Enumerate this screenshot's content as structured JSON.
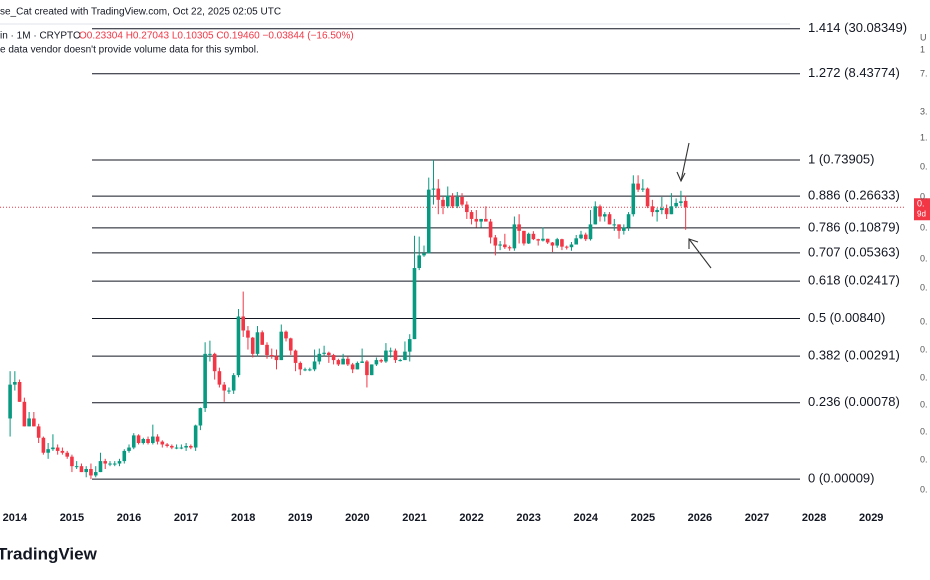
{
  "chart_data": {
    "type": "candlestick",
    "header": {
      "title": "se_Cat created with TradingView.com, Oct 22, 2025 02:05 UTC",
      "symbol": "in · 1M · CRYPTO",
      "ohlc_text": "O0.23304 H0.27043 L0.10305 C0.19460 −0.03844 (−16.50%)",
      "notice": "e data vendor doesn't provide volume data for this symbol."
    },
    "logo": "TradingView",
    "log_scale": true,
    "up_color": "#089981",
    "down_color": "#f23645",
    "xlim": [
      2013.74,
      2030.03
    ],
    "xticks": [
      2014,
      2015,
      2016,
      2017,
      2018,
      2019,
      2020,
      2021,
      2022,
      2023,
      2024,
      2025,
      2026,
      2027,
      2028,
      2029
    ],
    "ylim": [
      5e-05,
      67.8
    ],
    "fib_levels": [
      {
        "value": 30.08349,
        "label": "1.414 (30.08349)"
      },
      {
        "value": 8.43774,
        "label": "1.272 (8.43774)"
      },
      {
        "value": 0.73905,
        "label": "1 (0.73905)"
      },
      {
        "value": 0.26633,
        "label": "0.886 (0.26633)"
      },
      {
        "value": 0.10879,
        "label": "0.786 (0.10879)"
      },
      {
        "value": 0.05363,
        "label": "0.707 (0.05363)"
      },
      {
        "value": 0.02417,
        "label": "0.618 (0.02417)"
      },
      {
        "value": 0.0084,
        "label": "0.5 (0.00840)"
      },
      {
        "value": 0.00291,
        "label": "0.382 (0.00291)"
      },
      {
        "value": 0.00078,
        "label": "0.236 (0.00078)"
      },
      {
        "value": 9e-05,
        "label": "0 (0.00009)"
      }
    ],
    "price_tag": [
      "0.",
      "9d"
    ],
    "right_scale_fragments": [
      "U",
      "1",
      "7.",
      "3.",
      "1.",
      "0.",
      "0.",
      "0.",
      "0.",
      "0.",
      "0.",
      "0.",
      "0.",
      "0.",
      "0.",
      "0.",
      "0."
    ],
    "x": [
      2013.917,
      2014.0,
      2014.083,
      2014.167,
      2014.25,
      2014.333,
      2014.417,
      2014.5,
      2014.583,
      2014.667,
      2014.75,
      2014.833,
      2014.917,
      2015.0,
      2015.083,
      2015.167,
      2015.25,
      2015.333,
      2015.417,
      2015.5,
      2015.583,
      2015.667,
      2015.75,
      2015.833,
      2015.917,
      2016.0,
      2016.083,
      2016.167,
      2016.25,
      2016.333,
      2016.417,
      2016.5,
      2016.583,
      2016.667,
      2016.75,
      2016.833,
      2016.917,
      2017.0,
      2017.083,
      2017.167,
      2017.25,
      2017.333,
      2017.417,
      2017.5,
      2017.583,
      2017.667,
      2017.75,
      2017.833,
      2017.917,
      2018.0,
      2018.083,
      2018.167,
      2018.25,
      2018.333,
      2018.417,
      2018.5,
      2018.583,
      2018.667,
      2018.75,
      2018.833,
      2018.917,
      2019.0,
      2019.083,
      2019.167,
      2019.25,
      2019.333,
      2019.417,
      2019.5,
      2019.583,
      2019.667,
      2019.75,
      2019.833,
      2019.917,
      2020.0,
      2020.083,
      2020.167,
      2020.25,
      2020.333,
      2020.417,
      2020.5,
      2020.583,
      2020.667,
      2020.75,
      2020.833,
      2020.917,
      2021.0,
      2021.083,
      2021.167,
      2021.25,
      2021.333,
      2021.417,
      2021.5,
      2021.583,
      2021.667,
      2021.75,
      2021.833,
      2021.917,
      2022.0,
      2022.083,
      2022.167,
      2022.25,
      2022.333,
      2022.417,
      2022.5,
      2022.583,
      2022.667,
      2022.75,
      2022.833,
      2022.917,
      2023.0,
      2023.083,
      2023.167,
      2023.25,
      2023.333,
      2023.417,
      2023.5,
      2023.583,
      2023.667,
      2023.75,
      2023.833,
      2023.917,
      2024.0,
      2024.083,
      2024.167,
      2024.25,
      2024.333,
      2024.417,
      2024.5,
      2024.583,
      2024.667,
      2024.75,
      2024.833,
      2024.917,
      2025.0,
      2025.083,
      2025.167,
      2025.25,
      2025.333,
      2025.417,
      2025.5,
      2025.583,
      2025.667,
      2025.75
    ],
    "open": [
      0.0005,
      0.0013,
      0.0014,
      0.0008,
      0.0004,
      0.0005,
      0.0004,
      0.00029,
      0.00019,
      0.00021,
      0.00022,
      0.0002,
      0.00019,
      0.00017,
      0.00013,
      0.00013,
      0.00011,
      0.00012,
      0.0001,
      0.00011,
      0.00015,
      0.00014,
      0.00014,
      0.00014,
      0.00015,
      0.0002,
      0.00022,
      0.00031,
      0.00025,
      0.00028,
      0.00025,
      0.0003,
      0.00026,
      0.00024,
      0.00023,
      0.00022,
      0.00022,
      0.00022,
      0.00023,
      0.00022,
      0.00041,
      0.00067,
      0.0031,
      0.0031,
      0.0019,
      0.0013,
      0.0011,
      0.0011,
      0.0017,
      0.0089,
      0.006,
      0.0049,
      0.0031,
      0.0057,
      0.004,
      0.003,
      0.0029,
      0.0026,
      0.0058,
      0.0048,
      0.0034,
      0.0024,
      0.002,
      0.002,
      0.002,
      0.0025,
      0.0031,
      0.0032,
      0.003,
      0.0026,
      0.0023,
      0.0027,
      0.0023,
      0.002,
      0.0024,
      0.0025,
      0.0017,
      0.0023,
      0.0026,
      0.0025,
      0.0034,
      0.0034,
      0.0026,
      0.0026,
      0.0033,
      0.0047,
      0.035,
      0.05,
      0.053,
      0.32,
      0.33,
      0.24,
      0.2,
      0.27,
      0.2,
      0.26,
      0.21,
      0.17,
      0.14,
      0.13,
      0.14,
      0.13,
      0.083,
      0.066,
      0.068,
      0.063,
      0.061,
      0.12,
      0.1,
      0.07,
      0.092,
      0.079,
      0.076,
      0.08,
      0.072,
      0.066,
      0.079,
      0.064,
      0.063,
      0.068,
      0.081,
      0.09,
      0.079,
      0.12,
      0.2,
      0.15,
      0.16,
      0.12,
      0.12,
      0.1,
      0.11,
      0.16,
      0.38,
      0.32,
      0.33,
      0.2,
      0.17,
      0.18,
      0.19,
      0.16,
      0.2,
      0.22,
      0.23304
    ],
    "high": [
      0.0019,
      0.0019,
      0.0015,
      0.0009,
      0.0006,
      0.0006,
      0.00043,
      0.0003,
      0.00025,
      0.00032,
      0.00024,
      0.00022,
      0.0002,
      0.00018,
      0.00015,
      0.00014,
      0.00013,
      0.00014,
      0.00013,
      0.00019,
      0.00016,
      0.00015,
      0.00015,
      0.00016,
      0.00021,
      0.00024,
      0.00033,
      0.00032,
      0.00029,
      0.0003,
      0.00042,
      0.00032,
      0.00027,
      0.00025,
      0.00024,
      0.00024,
      0.00024,
      0.00025,
      0.00024,
      0.00042,
      0.00068,
      0.0043,
      0.0045,
      0.0032,
      0.0021,
      0.0014,
      0.0012,
      0.0018,
      0.011,
      0.018,
      0.0068,
      0.005,
      0.0068,
      0.006,
      0.0043,
      0.0036,
      0.0035,
      0.0071,
      0.006,
      0.0049,
      0.0035,
      0.0025,
      0.0021,
      0.0021,
      0.0035,
      0.0036,
      0.0039,
      0.0033,
      0.0031,
      0.0027,
      0.0031,
      0.0029,
      0.0024,
      0.0025,
      0.0036,
      0.0026,
      0.0023,
      0.0028,
      0.0027,
      0.0042,
      0.0037,
      0.0036,
      0.0027,
      0.0044,
      0.0054,
      0.087,
      0.085,
      0.066,
      0.45,
      0.74,
      0.43,
      0.26,
      0.35,
      0.29,
      0.3,
      0.29,
      0.23,
      0.18,
      0.18,
      0.14,
      0.2,
      0.14,
      0.089,
      0.075,
      0.092,
      0.066,
      0.15,
      0.16,
      0.1,
      0.095,
      0.099,
      0.08,
      0.11,
      0.08,
      0.073,
      0.082,
      0.08,
      0.066,
      0.073,
      0.089,
      0.1,
      0.095,
      0.18,
      0.23,
      0.21,
      0.17,
      0.17,
      0.14,
      0.12,
      0.12,
      0.17,
      0.48,
      0.48,
      0.43,
      0.34,
      0.24,
      0.19,
      0.26,
      0.21,
      0.29,
      0.25,
      0.31,
      0.27043
    ],
    "low": [
      0.0003,
      0.0011,
      0.0008,
      0.0004,
      0.0004,
      0.0004,
      0.00025,
      0.00018,
      0.00016,
      0.0002,
      0.00018,
      0.00018,
      0.00016,
      0.00011,
      0.00012,
      0.00011,
      9.5e-05,
      9e-05,
      9.5e-05,
      0.00011,
      0.00012,
      0.00013,
      0.00013,
      0.00013,
      0.00014,
      0.00019,
      0.00021,
      0.00024,
      0.00024,
      0.00024,
      0.00024,
      0.00024,
      0.00022,
      0.00022,
      0.00021,
      0.00021,
      0.00021,
      0.0002,
      0.00021,
      0.0002,
      0.00036,
      0.0006,
      0.0025,
      0.0015,
      0.0012,
      0.0008,
      0.001,
      0.001,
      0.0016,
      0.005,
      0.0035,
      0.0028,
      0.0029,
      0.004,
      0.0027,
      0.0027,
      0.002,
      0.0026,
      0.0044,
      0.003,
      0.0019,
      0.0017,
      0.0019,
      0.0019,
      0.0019,
      0.0023,
      0.0029,
      0.0024,
      0.0023,
      0.0022,
      0.0023,
      0.0022,
      0.0018,
      0.002,
      0.0024,
      0.0012,
      0.0017,
      0.0022,
      0.0024,
      0.0024,
      0.0028,
      0.0024,
      0.0025,
      0.0026,
      0.0025,
      0.0047,
      0.033,
      0.048,
      0.053,
      0.21,
      0.16,
      0.16,
      0.19,
      0.19,
      0.19,
      0.2,
      0.14,
      0.12,
      0.11,
      0.11,
      0.13,
      0.07,
      0.05,
      0.058,
      0.06,
      0.057,
      0.057,
      0.07,
      0.066,
      0.069,
      0.077,
      0.066,
      0.074,
      0.069,
      0.055,
      0.062,
      0.058,
      0.059,
      0.057,
      0.068,
      0.079,
      0.075,
      0.076,
      0.12,
      0.13,
      0.13,
      0.12,
      0.1,
      0.08,
      0.09,
      0.1,
      0.15,
      0.3,
      0.3,
      0.19,
      0.15,
      0.13,
      0.16,
      0.14,
      0.16,
      0.19,
      0.2,
      0.10305
    ],
    "close": [
      0.0013,
      0.0014,
      0.0008,
      0.0004,
      0.0005,
      0.0004,
      0.00029,
      0.00019,
      0.00021,
      0.00022,
      0.0002,
      0.00019,
      0.00017,
      0.00013,
      0.00013,
      0.00011,
      0.00012,
      0.0001,
      0.00011,
      0.00015,
      0.00014,
      0.00014,
      0.00014,
      0.00015,
      0.0002,
      0.00022,
      0.00031,
      0.00025,
      0.00028,
      0.00025,
      0.0003,
      0.00026,
      0.00024,
      0.00023,
      0.00022,
      0.00022,
      0.00022,
      0.00023,
      0.00022,
      0.00041,
      0.00067,
      0.0031,
      0.0031,
      0.0019,
      0.0013,
      0.0011,
      0.0011,
      0.0017,
      0.0089,
      0.006,
      0.0049,
      0.0031,
      0.0057,
      0.004,
      0.003,
      0.0029,
      0.0026,
      0.0058,
      0.0048,
      0.0034,
      0.0024,
      0.002,
      0.002,
      0.002,
      0.0025,
      0.0031,
      0.0032,
      0.003,
      0.0026,
      0.0023,
      0.0027,
      0.0023,
      0.002,
      0.0024,
      0.0025,
      0.0017,
      0.0023,
      0.0026,
      0.0025,
      0.0034,
      0.0034,
      0.0026,
      0.0026,
      0.0033,
      0.0047,
      0.035,
      0.05,
      0.053,
      0.32,
      0.33,
      0.24,
      0.2,
      0.27,
      0.2,
      0.26,
      0.21,
      0.17,
      0.14,
      0.13,
      0.14,
      0.13,
      0.083,
      0.066,
      0.068,
      0.063,
      0.061,
      0.12,
      0.1,
      0.07,
      0.092,
      0.079,
      0.076,
      0.08,
      0.072,
      0.066,
      0.079,
      0.064,
      0.063,
      0.068,
      0.081,
      0.09,
      0.079,
      0.12,
      0.2,
      0.15,
      0.16,
      0.12,
      0.12,
      0.1,
      0.11,
      0.16,
      0.38,
      0.32,
      0.33,
      0.2,
      0.17,
      0.18,
      0.19,
      0.16,
      0.2,
      0.22,
      0.23,
      0.1946
    ]
  }
}
